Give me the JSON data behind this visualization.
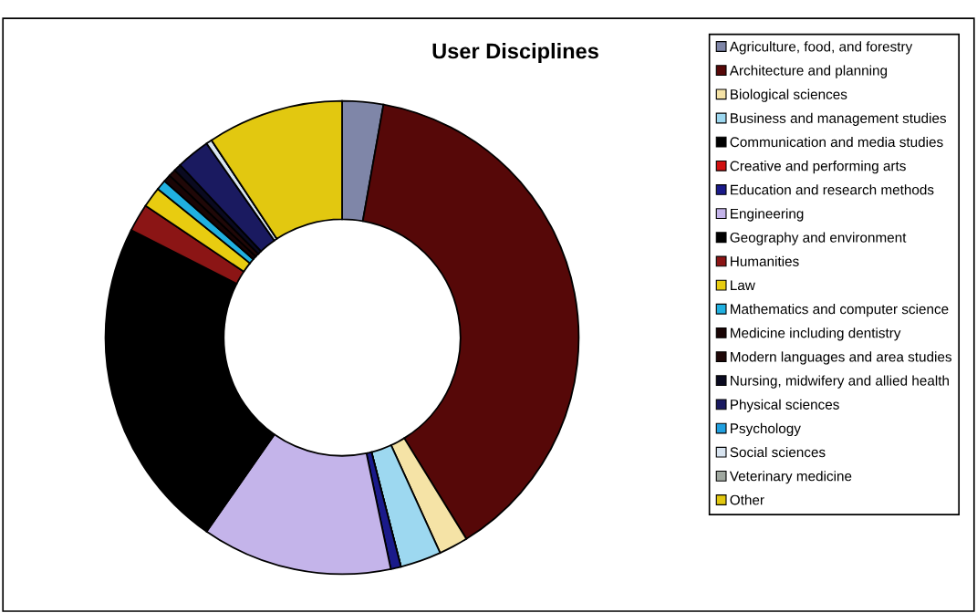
{
  "chart_data": {
    "type": "donut",
    "title": "User Disciplines",
    "categories": [
      "Agriculture, food, and forestry",
      "Architecture and planning",
      "Biological sciences",
      "Business and management studies",
      "Communication and media studies",
      "Creative and performing arts",
      "Education and research methods",
      "Engineering",
      "Geography and environment",
      "Humanities",
      "Law",
      "Mathematics and computer science",
      "Medicine including dentistry",
      "Modern languages and area studies",
      "Nursing, midwifery and allied health",
      "Physical sciences",
      "Psychology",
      "Social sciences",
      "Veterinary medicine",
      "Other"
    ],
    "values": [
      2.8,
      38.4,
      2,
      2.8,
      0,
      0,
      0.7,
      13,
      22.8,
      1.9,
      1.4,
      0.7,
      0.5,
      0.5,
      0.5,
      2.3,
      0,
      0.4,
      0,
      9.3
    ],
    "colors": [
      "#7f86a8",
      "#560808",
      "#f5e3a6",
      "#9dd8f0",
      "#000000",
      "#d01010",
      "#1a1a8a",
      "#c4b4ea",
      "#000000",
      "#8b1515",
      "#e8cc10",
      "#20b0e0",
      "#1a0505",
      "#200808",
      "#0a0a20",
      "#1a1a60",
      "#20a0e0",
      "#d8e4f0",
      "#a0a8a0",
      "#e2c810"
    ],
    "legend": "right"
  }
}
